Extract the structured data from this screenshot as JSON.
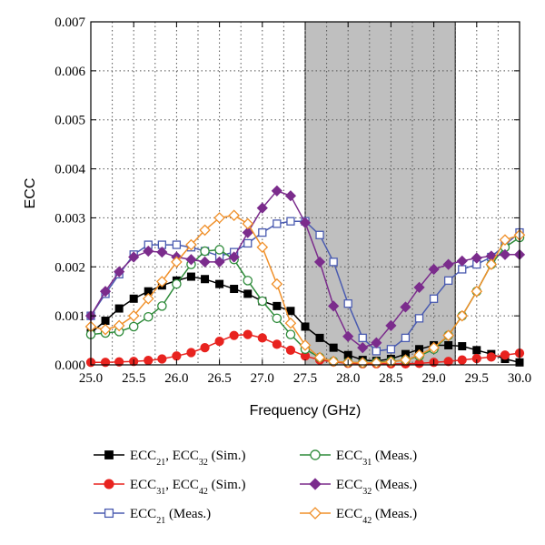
{
  "chart_data": {
    "type": "line",
    "xlabel": "Frequency (GHz)",
    "ylabel": "ECC",
    "xlim": [
      25.0,
      30.0
    ],
    "ylim": [
      0,
      0.007
    ],
    "xticks": [
      "25.0",
      "25.5",
      "26.0",
      "26.5",
      "27.0",
      "27.5",
      "28.0",
      "28.5",
      "29.0",
      "29.5",
      "30.0"
    ],
    "yticks": [
      "0.000",
      "0.001",
      "0.002",
      "0.003",
      "0.004",
      "0.005",
      "0.006",
      "0.007"
    ],
    "grid": true,
    "shaded_band": {
      "x_start": 27.5,
      "x_end": 29.25,
      "color": "#bfbfbf"
    },
    "legend_position": "bottom",
    "series": [
      {
        "base": "ECC",
        "sub1": "21",
        "mid": ", ECC",
        "sub2": "32",
        "suffix": " (Sim.)",
        "color": "#000000",
        "marker": "square",
        "filled": true,
        "x": [
          25.0,
          25.17,
          25.33,
          25.5,
          25.67,
          25.83,
          26.0,
          26.17,
          26.33,
          26.5,
          26.67,
          26.83,
          27.0,
          27.17,
          27.33,
          27.5,
          27.67,
          27.83,
          28.0,
          28.17,
          28.33,
          28.5,
          28.67,
          28.83,
          29.0,
          29.17,
          29.33,
          29.5,
          29.67,
          29.83,
          30.0
        ],
        "y": [
          0.00065,
          0.0009,
          0.00115,
          0.00135,
          0.0015,
          0.00162,
          0.00172,
          0.0018,
          0.00175,
          0.00165,
          0.00155,
          0.00145,
          0.0013,
          0.0012,
          0.0011,
          0.00078,
          0.00055,
          0.00035,
          0.0002,
          0.0001,
          8e-05,
          0.00012,
          0.00022,
          0.00032,
          0.0004,
          0.0004,
          0.00038,
          0.0003,
          0.00022,
          0.00012,
          5e-05
        ]
      },
      {
        "base": "ECC",
        "sub1": "31",
        "mid": ", ECC",
        "sub2": "42",
        "suffix": " (Sim.)",
        "color": "#e8231f",
        "marker": "circle",
        "filled": true,
        "x": [
          25.0,
          25.17,
          25.33,
          25.5,
          25.67,
          25.83,
          26.0,
          26.17,
          26.33,
          26.5,
          26.67,
          26.83,
          27.0,
          27.17,
          27.33,
          27.5,
          27.67,
          27.83,
          28.0,
          28.17,
          28.33,
          28.5,
          28.67,
          28.83,
          29.0,
          29.17,
          29.33,
          29.5,
          29.67,
          29.83,
          30.0
        ],
        "y": [
          5e-05,
          5e-05,
          6e-05,
          7e-05,
          9e-05,
          0.00012,
          0.00018,
          0.00025,
          0.00035,
          0.00048,
          0.0006,
          0.00062,
          0.00055,
          0.00042,
          0.0003,
          0.00018,
          0.0001,
          6e-05,
          3e-05,
          2e-05,
          2e-05,
          2e-05,
          2e-05,
          3e-05,
          5e-05,
          7e-05,
          0.0001,
          0.00013,
          0.00016,
          0.0002,
          0.00024
        ]
      },
      {
        "base": "ECC",
        "sub1": "21",
        "mid": "",
        "sub2": "",
        "suffix": " (Meas.)",
        "color": "#4a5bb0",
        "marker": "square",
        "filled": false,
        "x": [
          25.0,
          25.17,
          25.33,
          25.5,
          25.67,
          25.83,
          26.0,
          26.17,
          26.33,
          26.5,
          26.67,
          26.83,
          27.0,
          27.17,
          27.33,
          27.5,
          27.67,
          27.83,
          28.0,
          28.17,
          28.33,
          28.5,
          28.67,
          28.83,
          29.0,
          29.17,
          29.33,
          29.5,
          29.67,
          29.83,
          30.0
        ],
        "y": [
          0.001,
          0.00145,
          0.00185,
          0.00225,
          0.00245,
          0.00245,
          0.00245,
          0.0024,
          0.00232,
          0.00222,
          0.0023,
          0.00248,
          0.0027,
          0.00288,
          0.00293,
          0.00293,
          0.00265,
          0.0021,
          0.00125,
          0.00055,
          0.00028,
          0.00032,
          0.00055,
          0.00095,
          0.00135,
          0.00172,
          0.00195,
          0.00205,
          0.0022,
          0.00245,
          0.0027
        ]
      },
      {
        "base": "ECC",
        "sub1": "31",
        "mid": "",
        "sub2": "",
        "suffix": " (Meas.)",
        "color": "#2e8b3a",
        "marker": "circle",
        "filled": false,
        "x": [
          25.0,
          25.17,
          25.33,
          25.5,
          25.67,
          25.83,
          26.0,
          26.17,
          26.33,
          26.5,
          26.67,
          26.83,
          27.0,
          27.17,
          27.33,
          27.5,
          27.67,
          27.83,
          28.0,
          28.17,
          28.33,
          28.5,
          28.67,
          28.83,
          29.0,
          29.17,
          29.33,
          29.5,
          29.67,
          29.83,
          30.0
        ],
        "y": [
          0.00062,
          0.00065,
          0.00068,
          0.00078,
          0.00098,
          0.0012,
          0.00165,
          0.00205,
          0.00232,
          0.00235,
          0.00215,
          0.00172,
          0.0013,
          0.00095,
          0.00062,
          0.00032,
          0.00015,
          7e-05,
          5e-05,
          4e-05,
          5e-05,
          7e-05,
          0.0001,
          0.00018,
          0.00032,
          0.0006,
          0.001,
          0.0015,
          0.00205,
          0.0024,
          0.0026
        ]
      },
      {
        "base": "ECC",
        "sub1": "32",
        "mid": "",
        "sub2": "",
        "suffix": " (Meas.)",
        "color": "#7b2c8c",
        "marker": "diamond",
        "filled": true,
        "x": [
          25.0,
          25.17,
          25.33,
          25.5,
          25.67,
          25.83,
          26.0,
          26.17,
          26.33,
          26.5,
          26.67,
          26.83,
          27.0,
          27.17,
          27.33,
          27.5,
          27.67,
          27.83,
          28.0,
          28.17,
          28.33,
          28.5,
          28.67,
          28.83,
          29.0,
          29.17,
          29.33,
          29.5,
          29.67,
          29.83,
          30.0
        ],
        "y": [
          0.001,
          0.0015,
          0.0019,
          0.0022,
          0.00232,
          0.0023,
          0.0022,
          0.00215,
          0.0021,
          0.0021,
          0.0022,
          0.0027,
          0.0032,
          0.00355,
          0.00345,
          0.0029,
          0.0021,
          0.0012,
          0.00058,
          0.00035,
          0.00045,
          0.0008,
          0.00118,
          0.00158,
          0.00195,
          0.00205,
          0.00212,
          0.00218,
          0.00222,
          0.00225,
          0.00225
        ]
      },
      {
        "base": "ECC",
        "sub1": "42",
        "mid": "",
        "sub2": "",
        "suffix": " (Meas.)",
        "color": "#f0902a",
        "marker": "diamond",
        "filled": false,
        "x": [
          25.0,
          25.17,
          25.33,
          25.5,
          25.67,
          25.83,
          26.0,
          26.17,
          26.33,
          26.5,
          26.67,
          26.83,
          27.0,
          27.17,
          27.33,
          27.5,
          27.67,
          27.83,
          28.0,
          28.17,
          28.33,
          28.5,
          28.67,
          28.83,
          29.0,
          29.17,
          29.33,
          29.5,
          29.67,
          29.83,
          30.0
        ],
        "y": [
          0.00078,
          0.00072,
          0.0008,
          0.001,
          0.00135,
          0.0017,
          0.0021,
          0.00245,
          0.00275,
          0.003,
          0.00305,
          0.00288,
          0.0024,
          0.00165,
          0.00085,
          0.0004,
          0.00015,
          7e-05,
          5e-05,
          4e-05,
          4e-05,
          6e-05,
          0.0001,
          0.0002,
          0.00035,
          0.0006,
          0.001,
          0.0015,
          0.00205,
          0.00255,
          0.00265
        ]
      }
    ]
  }
}
